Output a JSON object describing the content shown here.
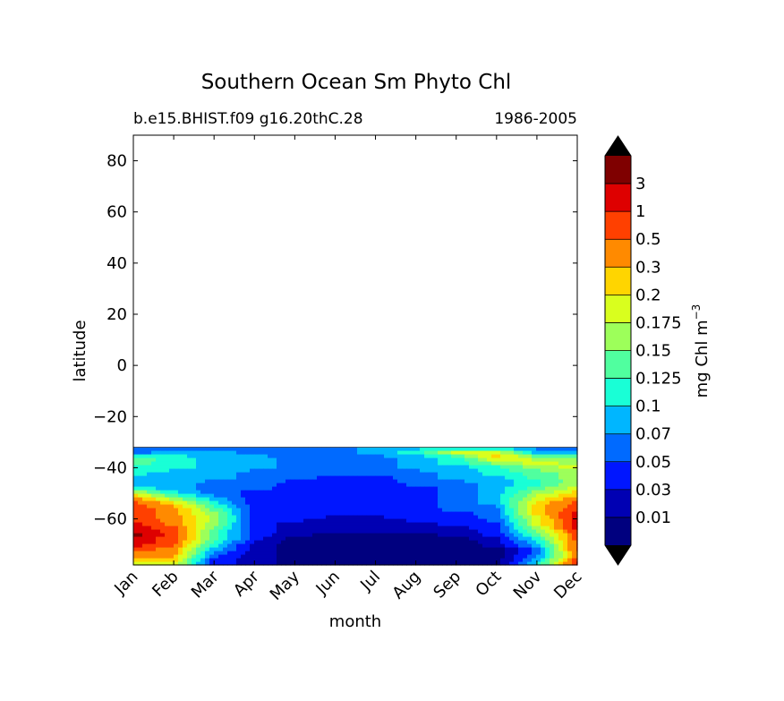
{
  "chart_data": {
    "type": "heatmap",
    "title": "Southern Ocean Sm Phyto Chl",
    "subtitle_left": "b.e15.BHIST.f09 g16.20thC.28",
    "subtitle_right": "1986-2005",
    "xlabel": "month",
    "ylabel": "latitude",
    "x_ticks": [
      "Jan",
      "Feb",
      "Mar",
      "Apr",
      "May",
      "Jun",
      "Jul",
      "Aug",
      "Sep",
      "Oct",
      "Nov",
      "Dec"
    ],
    "y_ticks": [
      "80",
      "60",
      "40",
      "20",
      "0",
      "−20",
      "−40",
      "−60"
    ],
    "y_tick_values": [
      80,
      60,
      40,
      20,
      0,
      -20,
      -40,
      -60
    ],
    "ylim": [
      -78,
      90
    ],
    "xlim": [
      0,
      11
    ],
    "data_lat_range": [
      -78,
      -32
    ],
    "colorbar": {
      "label": "mg Chl m",
      "label_exponent": "−3",
      "levels": [
        "0.01",
        "0.03",
        "0.05",
        "0.07",
        "0.1",
        "0.125",
        "0.15",
        "0.175",
        "0.2",
        "0.3",
        "0.5",
        "1",
        "3"
      ],
      "colors": [
        "#00007f",
        "#0000b3",
        "#0016ff",
        "#006aff",
        "#00b6ff",
        "#19ffd6",
        "#50ff9f",
        "#9dff5a",
        "#d9ff1e",
        "#ffd500",
        "#ff8a00",
        "#ff4000",
        "#de0000",
        "#7f0000"
      ],
      "under_color": "#000000",
      "over_color": "#000000"
    },
    "rows": [
      {
        "lat": -32,
        "values": [
          3,
          3,
          3,
          3,
          3,
          3,
          4,
          4,
          4,
          4,
          3,
          3
        ]
      },
      {
        "lat": -34,
        "values": [
          3,
          4,
          4,
          3,
          3,
          3,
          4,
          5,
          8,
          8,
          4,
          4
        ]
      },
      {
        "lat": -36,
        "values": [
          6,
          5,
          4,
          4,
          3,
          3,
          3,
          4,
          5,
          9,
          7,
          6
        ]
      },
      {
        "lat": -38,
        "values": [
          6,
          5,
          4,
          4,
          3,
          3,
          3,
          4,
          5,
          7,
          8,
          7
        ]
      },
      {
        "lat": -40,
        "values": [
          5,
          5,
          4,
          4,
          3,
          3,
          3,
          4,
          4,
          5,
          7,
          8
        ]
      },
      {
        "lat": -42,
        "values": [
          5,
          4,
          4,
          3,
          3,
          3,
          3,
          3,
          4,
          5,
          6,
          7
        ]
      },
      {
        "lat": -44,
        "values": [
          4,
          4,
          4,
          3,
          3,
          2,
          2,
          3,
          4,
          4,
          6,
          7
        ]
      },
      {
        "lat": -46,
        "values": [
          4,
          4,
          3,
          3,
          2,
          2,
          2,
          3,
          3,
          4,
          5,
          7
        ]
      },
      {
        "lat": -48,
        "values": [
          5,
          4,
          3,
          3,
          2,
          2,
          2,
          2,
          3,
          4,
          6,
          8
        ]
      },
      {
        "lat": -50,
        "values": [
          8,
          5,
          3,
          2,
          2,
          2,
          2,
          2,
          3,
          4,
          7,
          9
        ]
      },
      {
        "lat": -52,
        "values": [
          10,
          7,
          4,
          2,
          2,
          2,
          2,
          2,
          3,
          4,
          8,
          10
        ]
      },
      {
        "lat": -54,
        "values": [
          11,
          9,
          5,
          2,
          2,
          2,
          2,
          2,
          3,
          4,
          9,
          11
        ]
      },
      {
        "lat": -56,
        "values": [
          11,
          10,
          6,
          2,
          2,
          2,
          2,
          2,
          3,
          3,
          9,
          11
        ]
      },
      {
        "lat": -58,
        "values": [
          11,
          10,
          7,
          2,
          2,
          2,
          2,
          2,
          2,
          3,
          9,
          12
        ]
      },
      {
        "lat": -60,
        "values": [
          11,
          10,
          7,
          2,
          2,
          1,
          1,
          2,
          2,
          3,
          8,
          12
        ]
      },
      {
        "lat": -62,
        "values": [
          12,
          10,
          7,
          2,
          1,
          1,
          1,
          1,
          2,
          2,
          8,
          12
        ]
      },
      {
        "lat": -64,
        "values": [
          12,
          11,
          6,
          2,
          1,
          1,
          1,
          1,
          1,
          2,
          7,
          12
        ]
      },
      {
        "lat": -66,
        "values": [
          13,
          11,
          6,
          2,
          1,
          0,
          0,
          0,
          1,
          2,
          6,
          11
        ]
      },
      {
        "lat": -68,
        "values": [
          12,
          11,
          6,
          2,
          0,
          0,
          0,
          0,
          0,
          1,
          5,
          11
        ]
      },
      {
        "lat": -70,
        "values": [
          12,
          11,
          5,
          1,
          0,
          0,
          0,
          0,
          0,
          1,
          4,
          11
        ]
      },
      {
        "lat": -72,
        "values": [
          11,
          10,
          4,
          1,
          0,
          0,
          0,
          0,
          0,
          0,
          3,
          11
        ]
      },
      {
        "lat": -74,
        "values": [
          10,
          10,
          3,
          1,
          0,
          0,
          0,
          0,
          0,
          0,
          3,
          10
        ]
      },
      {
        "lat": -76,
        "values": [
          9,
          9,
          2,
          1,
          0,
          0,
          0,
          0,
          0,
          0,
          4,
          11
        ]
      },
      {
        "lat": -78,
        "values": [
          8,
          8,
          2,
          1,
          0,
          0,
          0,
          0,
          0,
          0,
          5,
          12
        ]
      }
    ]
  }
}
